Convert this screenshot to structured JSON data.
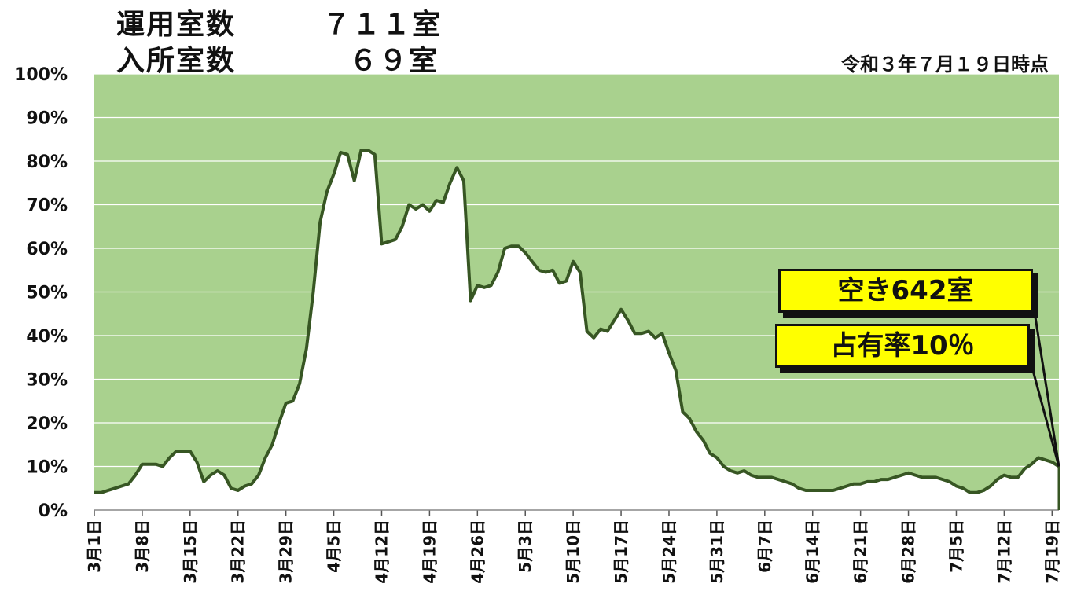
{
  "header": {
    "line1_label": "運用室数",
    "line1_value": "７１１室",
    "line2_label": "入所室数",
    "line2_value": "６９室",
    "as_of": "令和３年７月１９日時点"
  },
  "callouts": {
    "vacant": "空き642室",
    "occupancy": "占有率10％"
  },
  "colors": {
    "fill": "#a9d18e",
    "line": "#375623",
    "callout_bg": "#ffff00"
  },
  "chart_data": {
    "type": "area",
    "ylim": [
      0,
      100
    ],
    "y_ticks": [
      "0%",
      "10%",
      "20%",
      "30%",
      "40%",
      "50%",
      "60%",
      "70%",
      "80%",
      "90%",
      "100%"
    ],
    "x_ticks": [
      "3月1日",
      "3月8日",
      "3月15日",
      "3月22日",
      "3月29日",
      "4月5日",
      "4月12日",
      "4月19日",
      "4月26日",
      "5月3日",
      "5月10日",
      "5月17日",
      "5月24日",
      "5月31日",
      "6月7日",
      "6月14日",
      "6月21日",
      "6月28日",
      "7月5日",
      "7月12日",
      "7月19日"
    ],
    "series": [
      {
        "values": [
          4,
          4,
          4.5,
          5,
          5.5,
          6,
          8,
          10.5,
          10.5,
          10.5,
          10,
          12,
          13.5,
          13.5,
          13.5,
          11,
          6.5,
          8,
          9,
          8,
          5,
          4.5,
          5.5,
          6,
          8,
          12,
          15,
          20,
          24.5,
          25,
          29,
          37,
          50,
          66,
          73,
          77,
          82,
          81.5,
          75.5,
          82.5,
          82.5,
          81.5,
          61,
          61.5,
          62,
          65,
          70,
          69,
          70,
          68.5,
          71,
          70.5,
          75,
          78.5,
          75.5,
          48,
          51.5,
          51,
          51.5,
          54.5,
          60,
          60.5,
          60.5,
          59,
          57,
          55,
          54.5,
          55,
          52,
          52.5,
          57,
          54.5,
          41,
          39.5,
          41.5,
          41,
          43.5,
          46,
          43.5,
          40.5,
          40.5,
          41,
          39.5,
          40.5,
          36,
          32,
          22.5,
          21,
          18,
          16,
          13,
          12,
          10,
          9,
          8.5,
          9,
          8,
          7.5,
          7.5,
          7.5,
          7,
          6.5,
          6,
          5,
          4.5,
          4.5,
          4.5,
          4.5,
          4.5,
          5,
          5.5,
          6,
          6,
          6.5,
          6.5,
          7,
          7,
          7.5,
          8,
          8.5,
          8,
          7.5,
          7.5,
          7.5,
          7,
          6.5,
          5.5,
          5,
          4,
          4,
          4.5,
          5.5,
          7,
          8,
          7.5,
          7.5,
          9.5,
          10.5,
          12,
          11.5,
          11,
          10
        ]
      }
    ]
  }
}
